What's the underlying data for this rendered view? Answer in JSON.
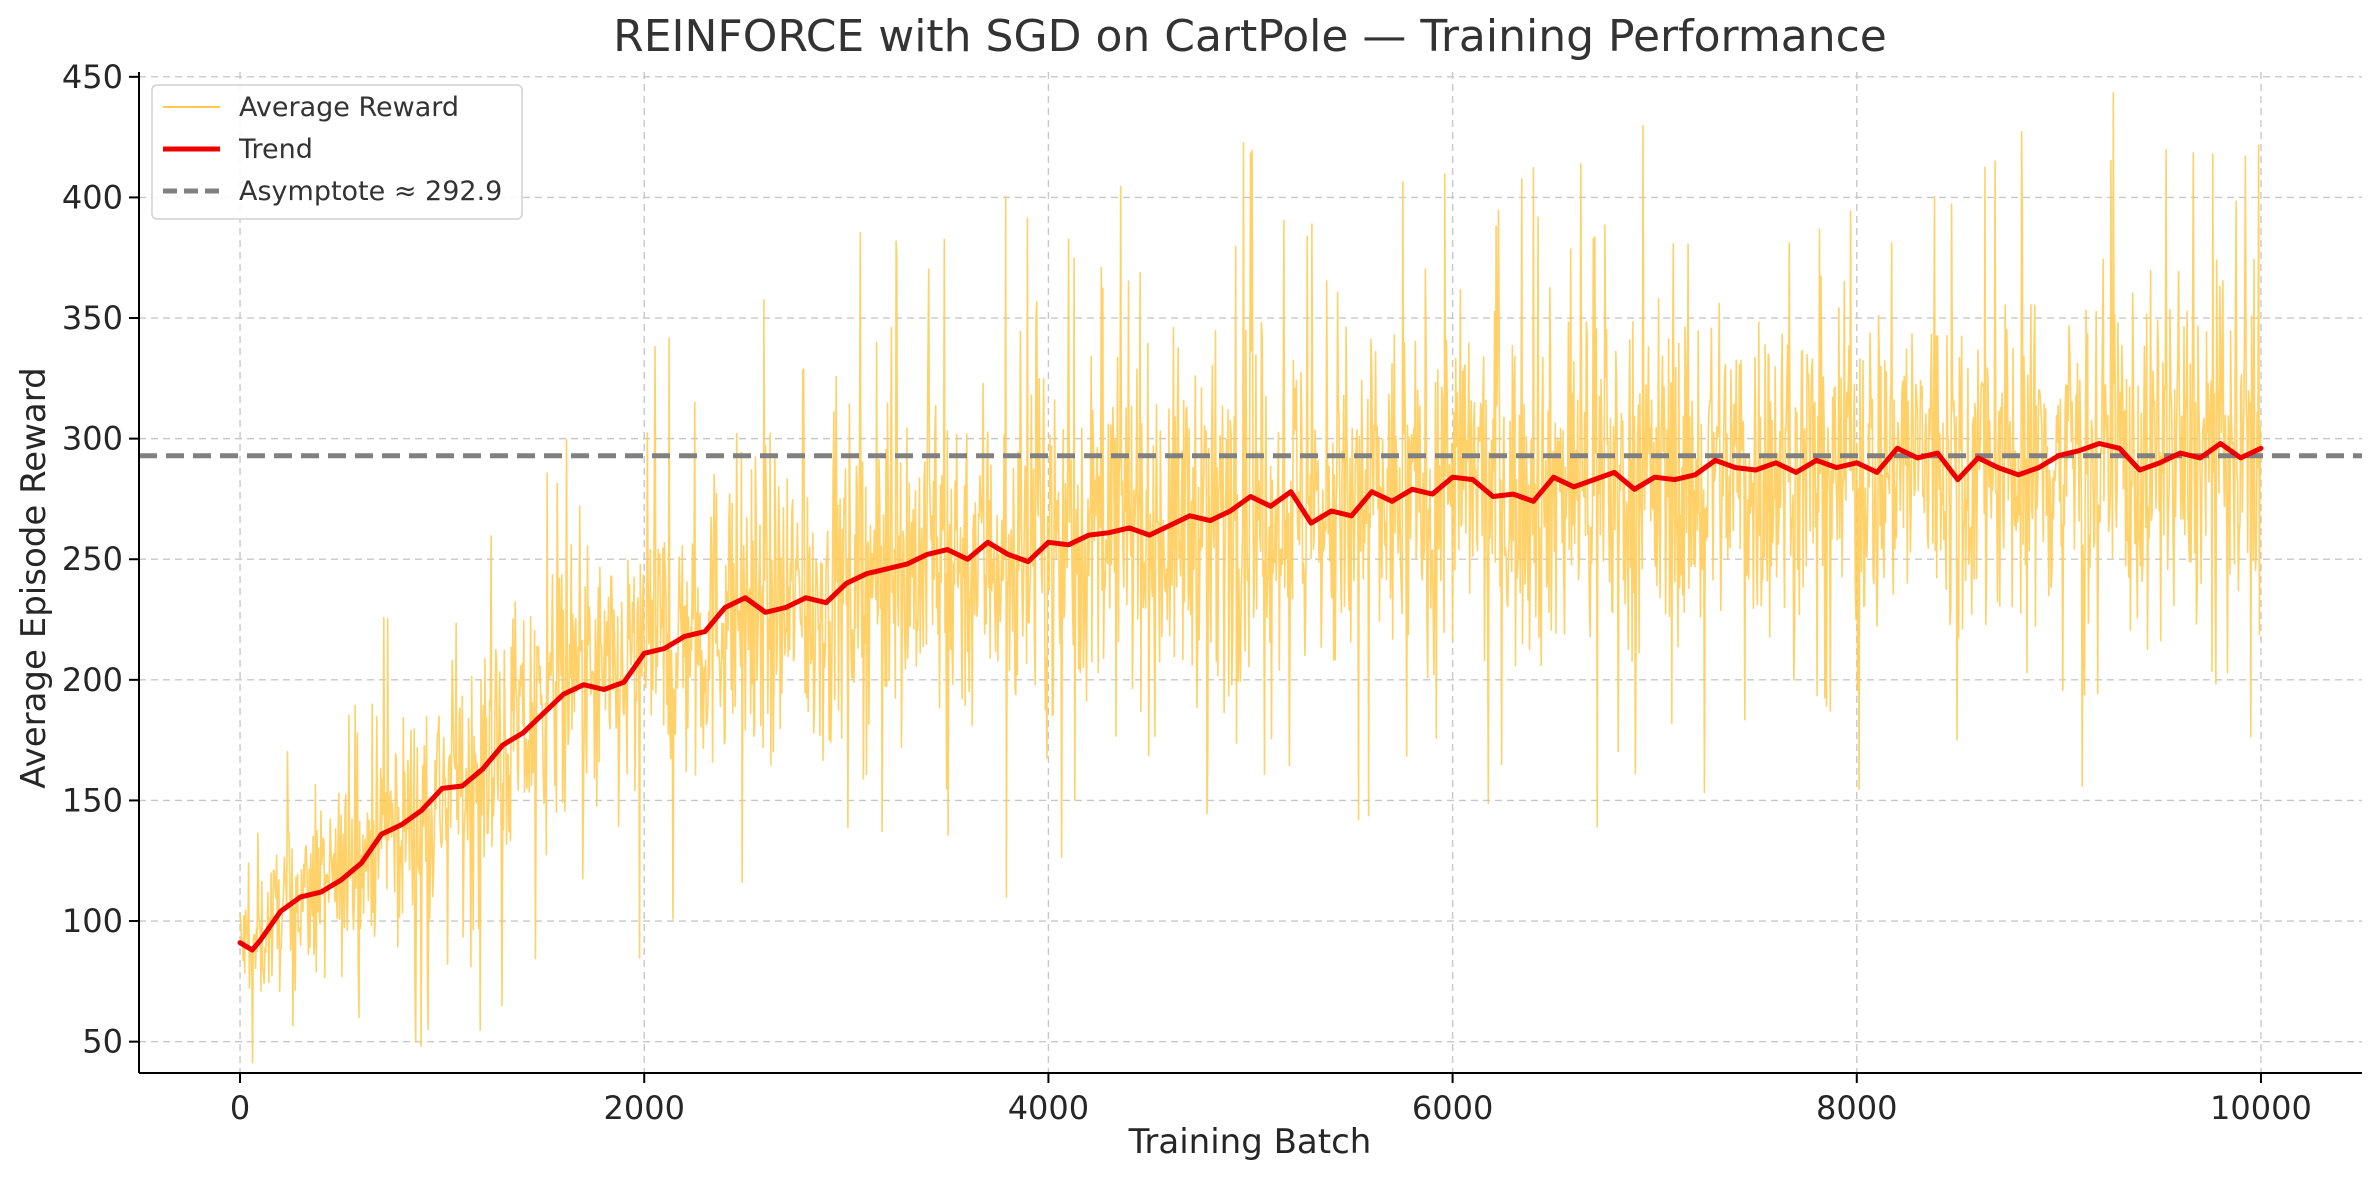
{
  "chart_data": {
    "type": "line",
    "title": "REINFORCE with SGD on CartPole — Training Performance",
    "xlabel": "Training Batch",
    "ylabel": "Average Episode Reward",
    "xlim": [
      -500,
      10500
    ],
    "ylim": [
      37,
      452
    ],
    "x_ticks": [
      0,
      2000,
      4000,
      6000,
      8000,
      10000
    ],
    "x_tick_labels": [
      "0",
      "2000",
      "4000",
      "6000",
      "8000",
      "10000"
    ],
    "y_ticks": [
      50,
      100,
      150,
      200,
      250,
      300,
      350,
      400,
      450
    ],
    "y_tick_labels": [
      "50",
      "100",
      "150",
      "200",
      "250",
      "300",
      "350",
      "400",
      "450"
    ],
    "grid": true,
    "legend_position": "top-left",
    "colors": {
      "raw": "#FFC94D",
      "trend": "#EE0000",
      "asymptote": "#808080"
    },
    "series": [
      {
        "name": "Average Reward",
        "kind": "noisy",
        "x_range": [
          0,
          10000
        ],
        "description_values": "raw per-batch rewards around trend with spread growing from ~20 to ~70",
        "noise_envelope": {
          "x": [
            0,
            500,
            1000,
            2000,
            3000,
            4000,
            6000,
            8000,
            10000
          ],
          "spread": [
            22,
            35,
            45,
            55,
            62,
            65,
            65,
            65,
            65
          ]
        }
      },
      {
        "name": "Trend",
        "kind": "line",
        "x": [
          0,
          60,
          100,
          200,
          300,
          400,
          500,
          600,
          700,
          800,
          900,
          1000,
          1100,
          1200,
          1300,
          1400,
          1500,
          1600,
          1700,
          1800,
          1900,
          2000,
          2100,
          2200,
          2300,
          2400,
          2500,
          2600,
          2700,
          2800,
          2900,
          3000,
          3100,
          3200,
          3300,
          3400,
          3500,
          3600,
          3700,
          3800,
          3900,
          4000,
          4100,
          4200,
          4300,
          4400,
          4500,
          4600,
          4700,
          4800,
          4900,
          5000,
          5100,
          5200,
          5300,
          5400,
          5500,
          5600,
          5700,
          5800,
          5900,
          6000,
          6100,
          6200,
          6300,
          6400,
          6500,
          6600,
          6700,
          6800,
          6900,
          7000,
          7100,
          7200,
          7300,
          7400,
          7500,
          7600,
          7700,
          7800,
          7900,
          8000,
          8100,
          8200,
          8300,
          8400,
          8500,
          8600,
          8700,
          8800,
          8900,
          9000,
          9100,
          9200,
          9300,
          9400,
          9500,
          9600,
          9700,
          9800,
          9900,
          10000
        ],
        "y": [
          91,
          88,
          92,
          104,
          110,
          112,
          117,
          124,
          136,
          140,
          146,
          155,
          156,
          163,
          173,
          178,
          186,
          194,
          198,
          196,
          199,
          211,
          213,
          218,
          220,
          230,
          234,
          228,
          230,
          234,
          232,
          240,
          244,
          246,
          248,
          252,
          254,
          250,
          257,
          252,
          249,
          257,
          256,
          260,
          261,
          263,
          260,
          264,
          268,
          266,
          270,
          276,
          272,
          278,
          265,
          270,
          268,
          278,
          274,
          279,
          277,
          284,
          283,
          276,
          277,
          274,
          284,
          280,
          283,
          286,
          279,
          284,
          283,
          285,
          291,
          288,
          287,
          290,
          286,
          291,
          288,
          290,
          286,
          296,
          292,
          294,
          283,
          292,
          288,
          285,
          288,
          293,
          295,
          298,
          296,
          287,
          290,
          294,
          292,
          298,
          292,
          296
        ]
      },
      {
        "name": "Asymptote ≈ 292.9",
        "kind": "hline",
        "y": 292.9
      }
    ]
  }
}
